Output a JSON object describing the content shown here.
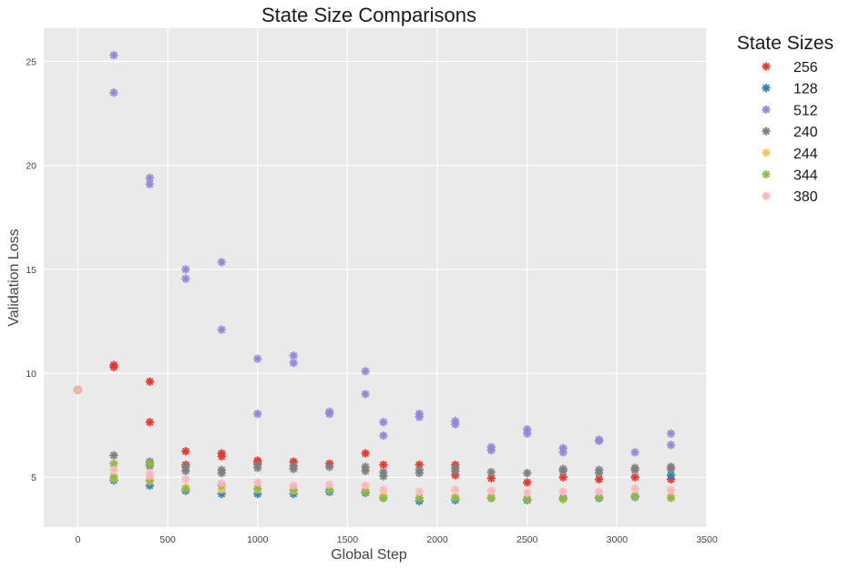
{
  "chart_data": {
    "type": "scatter",
    "title": "State Size Comparisons",
    "xlabel": "Global Step",
    "ylabel": "Validation Loss",
    "xlim": [
      -190,
      3500
    ],
    "ylim": [
      2.6,
      26.6
    ],
    "xticks": [
      0,
      500,
      1000,
      1500,
      2000,
      2500,
      3000,
      3500
    ],
    "yticks": [
      5,
      10,
      15,
      20,
      25
    ],
    "grid": true,
    "legend": {
      "title": "State Sizes",
      "position": "outside-right"
    },
    "series": [
      {
        "name": "256",
        "color": "#E8372A",
        "points": [
          [
            0,
            9.2
          ],
          [
            200,
            10.4
          ],
          [
            200,
            10.3
          ],
          [
            400,
            9.6
          ],
          [
            400,
            7.65
          ],
          [
            600,
            6.25
          ],
          [
            600,
            5.6
          ],
          [
            800,
            6.15
          ],
          [
            800,
            6.0
          ],
          [
            1000,
            5.8
          ],
          [
            1000,
            5.7
          ],
          [
            1200,
            5.75
          ],
          [
            1400,
            5.65
          ],
          [
            1600,
            6.15
          ],
          [
            1700,
            5.6
          ],
          [
            1900,
            5.6
          ],
          [
            2100,
            5.6
          ],
          [
            2100,
            5.1
          ],
          [
            2300,
            4.95
          ],
          [
            2500,
            4.75
          ],
          [
            2700,
            5.0
          ],
          [
            2900,
            4.9
          ],
          [
            3100,
            5.0
          ],
          [
            3300,
            4.9
          ]
        ]
      },
      {
        "name": "128",
        "color": "#2B83BA",
        "points": [
          [
            0,
            9.2
          ],
          [
            200,
            4.85
          ],
          [
            400,
            4.6
          ],
          [
            600,
            4.35
          ],
          [
            800,
            4.2
          ],
          [
            1000,
            4.2
          ],
          [
            1200,
            4.2
          ],
          [
            1400,
            4.3
          ],
          [
            1600,
            4.25
          ],
          [
            1700,
            4.0
          ],
          [
            1900,
            3.85
          ],
          [
            2100,
            3.9
          ],
          [
            2300,
            4.0
          ],
          [
            2500,
            3.9
          ],
          [
            2700,
            4.0
          ],
          [
            2900,
            4.0
          ],
          [
            3100,
            4.05
          ],
          [
            3300,
            5.1
          ]
        ]
      },
      {
        "name": "512",
        "color": "#9189D8",
        "points": [
          [
            0,
            9.2
          ],
          [
            200,
            25.3
          ],
          [
            200,
            23.5
          ],
          [
            400,
            19.4
          ],
          [
            400,
            19.1
          ],
          [
            600,
            15.0
          ],
          [
            600,
            14.55
          ],
          [
            800,
            15.35
          ],
          [
            800,
            12.1
          ],
          [
            1000,
            10.7
          ],
          [
            1000,
            8.05
          ],
          [
            1200,
            10.85
          ],
          [
            1200,
            10.5
          ],
          [
            1400,
            8.15
          ],
          [
            1400,
            8.05
          ],
          [
            1600,
            10.1
          ],
          [
            1600,
            9.0
          ],
          [
            1700,
            7.65
          ],
          [
            1700,
            7.0
          ],
          [
            1900,
            8.05
          ],
          [
            1900,
            7.9
          ],
          [
            2100,
            7.7
          ],
          [
            2100,
            7.55
          ],
          [
            2300,
            6.45
          ],
          [
            2300,
            6.3
          ],
          [
            2500,
            7.3
          ],
          [
            2500,
            7.1
          ],
          [
            2700,
            6.4
          ],
          [
            2700,
            6.2
          ],
          [
            2900,
            6.8
          ],
          [
            2900,
            6.75
          ],
          [
            3100,
            6.2
          ],
          [
            3300,
            7.1
          ],
          [
            3300,
            6.55
          ]
        ]
      },
      {
        "name": "240",
        "color": "#7F7F7F",
        "points": [
          [
            0,
            9.2
          ],
          [
            200,
            6.05
          ],
          [
            400,
            5.75
          ],
          [
            400,
            5.55
          ],
          [
            600,
            5.5
          ],
          [
            600,
            5.3
          ],
          [
            800,
            5.35
          ],
          [
            800,
            5.2
          ],
          [
            1000,
            5.6
          ],
          [
            1000,
            5.45
          ],
          [
            1200,
            5.55
          ],
          [
            1200,
            5.4
          ],
          [
            1400,
            5.5
          ],
          [
            1600,
            5.5
          ],
          [
            1600,
            5.3
          ],
          [
            1700,
            5.25
          ],
          [
            1700,
            5.05
          ],
          [
            1900,
            5.35
          ],
          [
            1900,
            5.2
          ],
          [
            2100,
            5.45
          ],
          [
            2100,
            5.3
          ],
          [
            2300,
            5.25
          ],
          [
            2500,
            5.2
          ],
          [
            2700,
            5.4
          ],
          [
            2700,
            5.3
          ],
          [
            2900,
            5.35
          ],
          [
            2900,
            5.2
          ],
          [
            3100,
            5.45
          ],
          [
            3100,
            5.35
          ],
          [
            3300,
            5.5
          ],
          [
            3300,
            5.4
          ]
        ]
      },
      {
        "name": "244",
        "color": "#FBC15E",
        "points": [
          [
            0,
            9.2
          ],
          [
            200,
            4.95
          ],
          [
            400,
            4.8
          ],
          [
            600,
            4.5
          ],
          [
            800,
            4.4
          ],
          [
            1000,
            4.4
          ],
          [
            1200,
            4.35
          ],
          [
            1400,
            4.4
          ],
          [
            1600,
            4.4
          ],
          [
            1700,
            4.1
          ],
          [
            1900,
            4.0
          ],
          [
            2100,
            4.05
          ],
          [
            2300,
            4.05
          ],
          [
            2500,
            3.95
          ],
          [
            2700,
            3.95
          ],
          [
            2900,
            4.05
          ],
          [
            3100,
            4.1
          ],
          [
            3300,
            4.1
          ]
        ]
      },
      {
        "name": "344",
        "color": "#8EBA42",
        "points": [
          [
            0,
            9.2
          ],
          [
            200,
            5.65
          ],
          [
            200,
            5.0
          ],
          [
            400,
            5.65
          ],
          [
            400,
            4.85
          ],
          [
            600,
            4.45
          ],
          [
            800,
            4.6
          ],
          [
            1000,
            4.45
          ],
          [
            1200,
            4.4
          ],
          [
            1400,
            4.4
          ],
          [
            1600,
            4.3
          ],
          [
            1700,
            4.0
          ],
          [
            1900,
            4.0
          ],
          [
            2100,
            4.0
          ],
          [
            2300,
            4.0
          ],
          [
            2500,
            3.95
          ],
          [
            2700,
            3.95
          ],
          [
            2900,
            4.05
          ],
          [
            3100,
            4.1
          ],
          [
            3300,
            4.0
          ]
        ]
      },
      {
        "name": "380",
        "color": "#FFB5B8",
        "points": [
          [
            0,
            9.2
          ],
          [
            200,
            5.35
          ],
          [
            400,
            5.2
          ],
          [
            400,
            5.05
          ],
          [
            600,
            4.9
          ],
          [
            800,
            4.7
          ],
          [
            1000,
            4.75
          ],
          [
            1200,
            4.6
          ],
          [
            1400,
            4.65
          ],
          [
            1600,
            4.6
          ],
          [
            1700,
            4.4
          ],
          [
            1900,
            4.3
          ],
          [
            2100,
            4.4
          ],
          [
            2300,
            4.35
          ],
          [
            2500,
            4.25
          ],
          [
            2700,
            4.3
          ],
          [
            2900,
            4.3
          ],
          [
            3100,
            4.45
          ],
          [
            3300,
            4.4
          ]
        ]
      }
    ]
  }
}
